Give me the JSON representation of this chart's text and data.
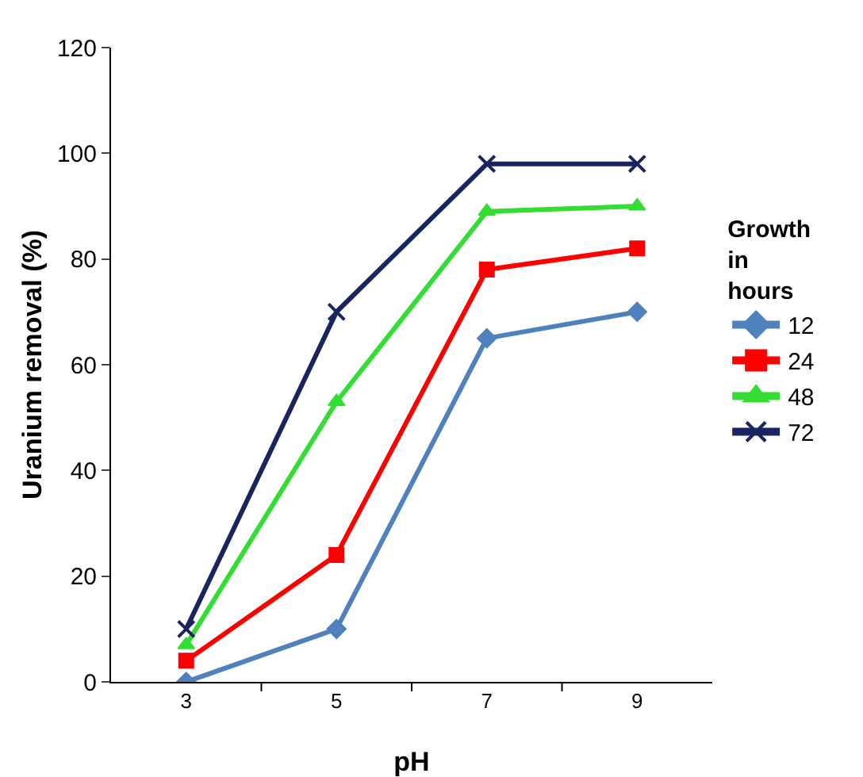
{
  "chart_data": {
    "type": "line",
    "xlabel": "pH",
    "ylabel": "Uranium removal (%)",
    "legend_title": "Growth in hours",
    "categories": [
      "3",
      "5",
      "7",
      "9"
    ],
    "ylim": [
      0,
      120
    ],
    "yticks": [
      0,
      20,
      40,
      60,
      80,
      100,
      120
    ],
    "grid": false,
    "legend": "right",
    "line_style": "solid",
    "series": [
      {
        "name": "12",
        "color": "#4f81bd",
        "marker": "diamond",
        "values": [
          0,
          10,
          65,
          70
        ]
      },
      {
        "name": "24",
        "color": "#ff0000",
        "marker": "square",
        "values": [
          4,
          24,
          78,
          82
        ]
      },
      {
        "name": "48",
        "color": "#33dd33",
        "marker": "triangle",
        "values": [
          7,
          53,
          89,
          90
        ]
      },
      {
        "name": "72",
        "color": "#1a2560",
        "marker": "cross",
        "values": [
          10,
          70,
          98,
          98
        ]
      }
    ]
  }
}
